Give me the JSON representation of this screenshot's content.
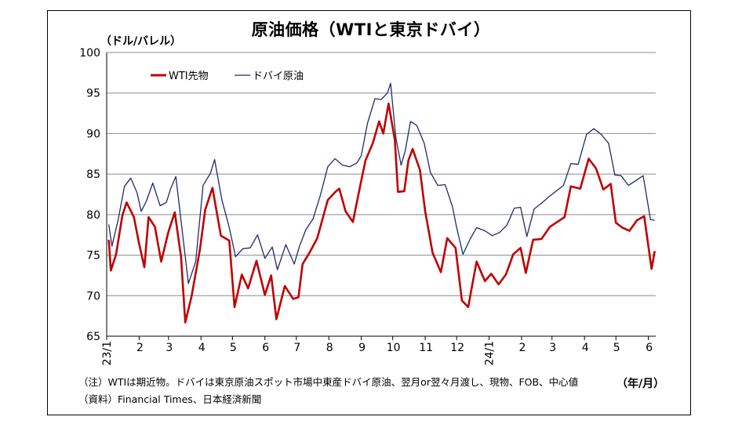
{
  "notes": {
    "note1": "（注）WTIは期近物。ドバイは東京原油スポット市場中東産ドバイ原油、翌月or翌々月渡し、現物、FOB、中心値",
    "note2": "（資料）Financial Times、日本経済新聞"
  },
  "chart_data": {
    "type": "line",
    "title": "原油価格（WTIと東京ドバイ）",
    "ylabel": "（ドル/バレル）",
    "xlabel": "",
    "x_unit_label": "（年/月）",
    "ylim": [
      65,
      100
    ],
    "yticks": [
      65,
      70,
      75,
      80,
      85,
      90,
      95,
      100
    ],
    "xticks": [
      "23/1",
      "2",
      "3",
      "4",
      "5",
      "6",
      "7",
      "8",
      "9",
      "10",
      "11",
      "12",
      "24/1",
      "2",
      "3",
      "4",
      "5",
      "6"
    ],
    "x_months": [
      "2023-01",
      "2023-02",
      "2023-03",
      "2023-04",
      "2023-05",
      "2023-06",
      "2023-07",
      "2023-08",
      "2023-09",
      "2023-10",
      "2023-11",
      "2023-12",
      "2024-01",
      "2024-02",
      "2024-03",
      "2024-04",
      "2024-05",
      "2024-06"
    ],
    "grid": "horizontal",
    "legend": "top-left",
    "series": [
      {
        "name": "WTI先物",
        "color": "#c00000",
        "points": [
          [
            "2023-01-03",
            76.9
          ],
          [
            "2023-01-05",
            73.1
          ],
          [
            "2023-01-10",
            75.1
          ],
          [
            "2023-01-16",
            79.9
          ],
          [
            "2023-01-20",
            81.5
          ],
          [
            "2023-01-27",
            79.7
          ],
          [
            "2023-02-01",
            76.4
          ],
          [
            "2023-02-06",
            73.5
          ],
          [
            "2023-02-10",
            79.7
          ],
          [
            "2023-02-16",
            78.5
          ],
          [
            "2023-02-22",
            74.2
          ],
          [
            "2023-03-01",
            77.9
          ],
          [
            "2023-03-07",
            80.3
          ],
          [
            "2023-03-13",
            74.8
          ],
          [
            "2023-03-17",
            66.7
          ],
          [
            "2023-03-23",
            69.9
          ],
          [
            "2023-03-31",
            75.7
          ],
          [
            "2023-04-05",
            80.6
          ],
          [
            "2023-04-12",
            83.3
          ],
          [
            "2023-04-20",
            77.4
          ],
          [
            "2023-04-28",
            76.8
          ],
          [
            "2023-05-03",
            68.6
          ],
          [
            "2023-05-10",
            72.6
          ],
          [
            "2023-05-16",
            70.9
          ],
          [
            "2023-05-24",
            74.3
          ],
          [
            "2023-06-01",
            70.1
          ],
          [
            "2023-06-07",
            72.5
          ],
          [
            "2023-06-12",
            67.1
          ],
          [
            "2023-06-20",
            71.2
          ],
          [
            "2023-06-28",
            69.6
          ],
          [
            "2023-07-03",
            69.8
          ],
          [
            "2023-07-07",
            73.9
          ],
          [
            "2023-07-14",
            75.4
          ],
          [
            "2023-07-21",
            77.1
          ],
          [
            "2023-07-31",
            81.8
          ],
          [
            "2023-08-08",
            82.9
          ],
          [
            "2023-08-11",
            83.2
          ],
          [
            "2023-08-17",
            80.4
          ],
          [
            "2023-08-24",
            79.1
          ],
          [
            "2023-08-31",
            83.6
          ],
          [
            "2023-09-05",
            86.7
          ],
          [
            "2023-09-12",
            88.8
          ],
          [
            "2023-09-18",
            91.5
          ],
          [
            "2023-09-22",
            90.0
          ],
          [
            "2023-09-27",
            93.7
          ],
          [
            "2023-10-03",
            89.2
          ],
          [
            "2023-10-06",
            82.8
          ],
          [
            "2023-10-12",
            82.9
          ],
          [
            "2023-10-16",
            86.7
          ],
          [
            "2023-10-20",
            88.1
          ],
          [
            "2023-10-27",
            85.5
          ],
          [
            "2023-11-01",
            80.4
          ],
          [
            "2023-11-08",
            75.3
          ],
          [
            "2023-11-16",
            72.9
          ],
          [
            "2023-11-22",
            77.1
          ],
          [
            "2023-11-30",
            75.9
          ],
          [
            "2023-12-06",
            69.4
          ],
          [
            "2023-12-12",
            68.6
          ],
          [
            "2023-12-20",
            74.2
          ],
          [
            "2023-12-28",
            71.8
          ],
          [
            "2024-01-03",
            72.7
          ],
          [
            "2024-01-10",
            71.4
          ],
          [
            "2024-01-17",
            72.6
          ],
          [
            "2024-01-24",
            75.1
          ],
          [
            "2024-01-31",
            75.9
          ],
          [
            "2024-02-05",
            72.8
          ],
          [
            "2024-02-12",
            76.9
          ],
          [
            "2024-02-20",
            77.0
          ],
          [
            "2024-02-28",
            78.5
          ],
          [
            "2024-03-06",
            79.1
          ],
          [
            "2024-03-13",
            79.7
          ],
          [
            "2024-03-19",
            83.5
          ],
          [
            "2024-03-28",
            83.2
          ],
          [
            "2024-04-05",
            86.9
          ],
          [
            "2024-04-12",
            85.7
          ],
          [
            "2024-04-19",
            83.1
          ],
          [
            "2024-04-26",
            83.8
          ],
          [
            "2024-05-01",
            79.0
          ],
          [
            "2024-05-07",
            78.4
          ],
          [
            "2024-05-14",
            78.0
          ],
          [
            "2024-05-21",
            79.3
          ],
          [
            "2024-05-28",
            79.8
          ],
          [
            "2024-06-04",
            73.3
          ],
          [
            "2024-06-07",
            75.5
          ]
        ]
      },
      {
        "name": "ドバイ原油",
        "color": "#1f2a6e",
        "points": [
          [
            "2023-01-03",
            78.8
          ],
          [
            "2023-01-06",
            76.1
          ],
          [
            "2023-01-12",
            79.4
          ],
          [
            "2023-01-18",
            83.5
          ],
          [
            "2023-01-24",
            84.5
          ],
          [
            "2023-01-30",
            82.7
          ],
          [
            "2023-02-03",
            80.4
          ],
          [
            "2023-02-08",
            81.7
          ],
          [
            "2023-02-14",
            83.9
          ],
          [
            "2023-02-21",
            81.1
          ],
          [
            "2023-02-27",
            81.5
          ],
          [
            "2023-03-03",
            83.2
          ],
          [
            "2023-03-08",
            84.7
          ],
          [
            "2023-03-14",
            78.1
          ],
          [
            "2023-03-20",
            71.5
          ],
          [
            "2023-03-27",
            74.2
          ],
          [
            "2023-04-03",
            83.6
          ],
          [
            "2023-04-10",
            85.1
          ],
          [
            "2023-04-14",
            86.8
          ],
          [
            "2023-04-21",
            81.8
          ],
          [
            "2023-04-28",
            78.4
          ],
          [
            "2023-05-04",
            74.8
          ],
          [
            "2023-05-11",
            75.8
          ],
          [
            "2023-05-18",
            75.9
          ],
          [
            "2023-05-25",
            77.5
          ],
          [
            "2023-06-01",
            74.6
          ],
          [
            "2023-06-08",
            76.0
          ],
          [
            "2023-06-13",
            73.2
          ],
          [
            "2023-06-21",
            76.3
          ],
          [
            "2023-06-29",
            73.9
          ],
          [
            "2023-07-04",
            76.1
          ],
          [
            "2023-07-10",
            78.1
          ],
          [
            "2023-07-17",
            79.5
          ],
          [
            "2023-07-24",
            82.4
          ],
          [
            "2023-07-31",
            85.9
          ],
          [
            "2023-08-07",
            86.9
          ],
          [
            "2023-08-14",
            86.1
          ],
          [
            "2023-08-21",
            85.9
          ],
          [
            "2023-08-28",
            86.4
          ],
          [
            "2023-09-01",
            87.3
          ],
          [
            "2023-09-07",
            91.3
          ],
          [
            "2023-09-14",
            94.3
          ],
          [
            "2023-09-20",
            94.2
          ],
          [
            "2023-09-26",
            95.0
          ],
          [
            "2023-09-29",
            96.2
          ],
          [
            "2023-10-04",
            89.5
          ],
          [
            "2023-10-09",
            86.1
          ],
          [
            "2023-10-13",
            87.9
          ],
          [
            "2023-10-18",
            91.5
          ],
          [
            "2023-10-24",
            91.0
          ],
          [
            "2023-10-31",
            88.8
          ],
          [
            "2023-11-06",
            85.2
          ],
          [
            "2023-11-13",
            83.6
          ],
          [
            "2023-11-20",
            83.7
          ],
          [
            "2023-11-27",
            81.0
          ],
          [
            "2023-12-01",
            78.4
          ],
          [
            "2023-12-07",
            75.1
          ],
          [
            "2023-12-14",
            77.0
          ],
          [
            "2023-12-20",
            78.4
          ],
          [
            "2023-12-28",
            78.0
          ],
          [
            "2024-01-04",
            77.4
          ],
          [
            "2024-01-11",
            77.8
          ],
          [
            "2024-01-18",
            78.7
          ],
          [
            "2024-01-25",
            80.8
          ],
          [
            "2024-01-31",
            80.9
          ],
          [
            "2024-02-06",
            77.3
          ],
          [
            "2024-02-13",
            80.7
          ],
          [
            "2024-02-20",
            81.4
          ],
          [
            "2024-02-27",
            82.2
          ],
          [
            "2024-03-05",
            82.9
          ],
          [
            "2024-03-12",
            83.6
          ],
          [
            "2024-03-19",
            86.3
          ],
          [
            "2024-03-26",
            86.2
          ],
          [
            "2024-04-03",
            89.9
          ],
          [
            "2024-04-10",
            90.6
          ],
          [
            "2024-04-17",
            89.9
          ],
          [
            "2024-04-24",
            88.8
          ],
          [
            "2024-04-30",
            84.9
          ],
          [
            "2024-05-06",
            84.8
          ],
          [
            "2024-05-13",
            83.6
          ],
          [
            "2024-05-20",
            84.2
          ],
          [
            "2024-05-27",
            84.8
          ],
          [
            "2024-06-03",
            79.4
          ],
          [
            "2024-06-07",
            79.3
          ]
        ]
      }
    ]
  }
}
